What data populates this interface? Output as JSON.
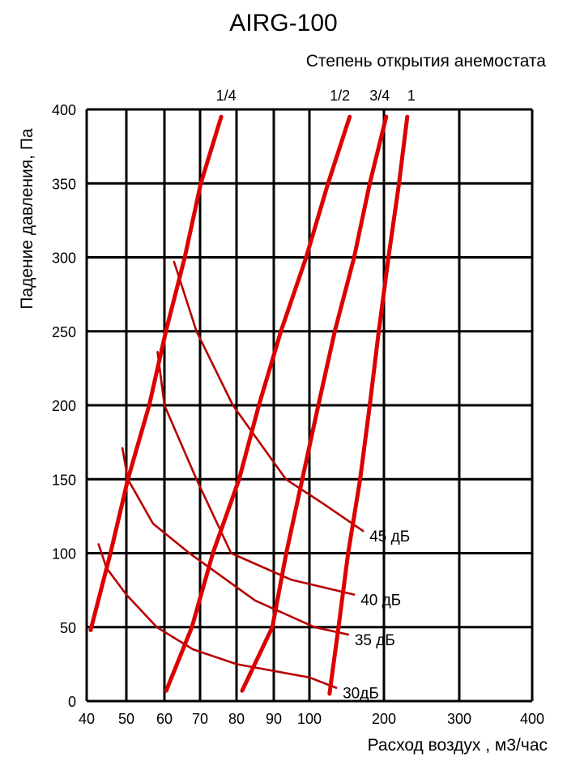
{
  "chart_data": {
    "type": "line",
    "title": "AIRG-100",
    "subtitle": "Степень открытия анемостата",
    "xlabel": "Расход воздух , м3/час",
    "ylabel": "Падение давления, Па",
    "x_ticks": [
      40,
      50,
      60,
      70,
      80,
      90,
      100,
      200,
      300,
      400
    ],
    "y_ticks": [
      0,
      50,
      100,
      150,
      200,
      250,
      300,
      350,
      400
    ],
    "xlim": [
      40,
      400
    ],
    "ylim": [
      0,
      400
    ],
    "x_scale": "non-uniform (40–100 step 10, then 100–400 step 100)",
    "grid": true,
    "colors": {
      "opening": "#dd0000",
      "noise": "#b80000",
      "grid": "#000000"
    },
    "opening_series": [
      {
        "name": "1/4",
        "points": [
          [
            41,
            48
          ],
          [
            46,
            100
          ],
          [
            50.4,
            150
          ],
          [
            56,
            200
          ],
          [
            60.4,
            250
          ],
          [
            65.7,
            300
          ],
          [
            70.2,
            350
          ],
          [
            75.8,
            395
          ]
        ]
      },
      {
        "name": "1/2",
        "points": [
          [
            60.5,
            7
          ],
          [
            67.7,
            50
          ],
          [
            73.5,
            100
          ],
          [
            80.7,
            150
          ],
          [
            86,
            200
          ],
          [
            92,
            250
          ],
          [
            99.1,
            300
          ],
          [
            125,
            350
          ],
          [
            154,
            395
          ]
        ]
      },
      {
        "name": "3/4",
        "points": [
          [
            81.5,
            7
          ],
          [
            89.6,
            50
          ],
          [
            93.5,
            100
          ],
          [
            98,
            150
          ],
          [
            112,
            200
          ],
          [
            134,
            250
          ],
          [
            160,
            300
          ],
          [
            181,
            350
          ],
          [
            203,
            395
          ]
        ]
      },
      {
        "name": "1",
        "points": [
          [
            127,
            5
          ],
          [
            139,
            50
          ],
          [
            152,
            100
          ],
          [
            168,
            150
          ],
          [
            181,
            200
          ],
          [
            193,
            250
          ],
          [
            206,
            300
          ],
          [
            220,
            350
          ],
          [
            231,
            395
          ]
        ]
      }
    ],
    "noise_series": [
      {
        "name": "45 дБ",
        "points": [
          [
            62.7,
            297
          ],
          [
            69,
            250
          ],
          [
            79,
            200
          ],
          [
            93.4,
            150
          ],
          [
            120,
            133
          ],
          [
            172,
            115
          ]
        ]
      },
      {
        "name": "40 дБ",
        "points": [
          [
            58.2,
            236
          ],
          [
            60,
            200
          ],
          [
            69,
            150
          ],
          [
            78.5,
            100
          ],
          [
            95,
            82
          ],
          [
            160,
            72
          ]
        ]
      },
      {
        "name": "35 дБ",
        "points": [
          [
            49,
            171
          ],
          [
            50.4,
            150
          ],
          [
            57,
            120
          ],
          [
            67,
            100
          ],
          [
            85,
            68
          ],
          [
            107,
            50
          ],
          [
            152,
            45
          ]
        ]
      },
      {
        "name": "30дБ",
        "points": [
          [
            43,
            106
          ],
          [
            45,
            90
          ],
          [
            50,
            72
          ],
          [
            58,
            50
          ],
          [
            68,
            35
          ],
          [
            80,
            25
          ],
          [
            100,
            16
          ],
          [
            136,
            9
          ]
        ]
      }
    ]
  }
}
